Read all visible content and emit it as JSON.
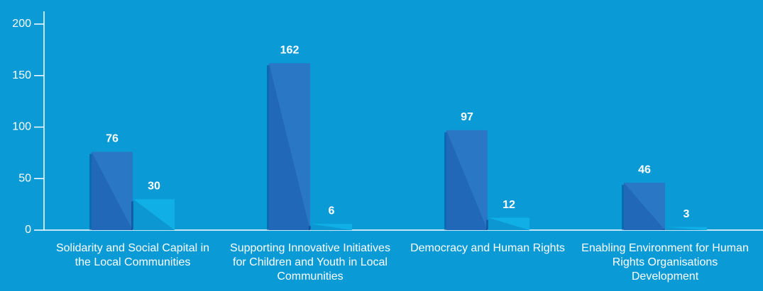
{
  "chart_data": {
    "type": "bar",
    "categories": [
      "Solidarity and Social Capital in the Local Communities",
      "Supporting Innovative Initiatives for Children and Youth in Local Communities",
      "Democracy and Human Rights",
      "Enabling Environment for Human Rights Organisations Development"
    ],
    "series": [
      {
        "color": "#2a77c6",
        "values": [
          76,
          162,
          97,
          46
        ]
      },
      {
        "color": "#10b0e6",
        "values": [
          30,
          6,
          12,
          3
        ]
      }
    ],
    "ylim": [
      0,
      200
    ],
    "yticks": [
      0,
      50,
      100,
      150,
      200
    ]
  }
}
